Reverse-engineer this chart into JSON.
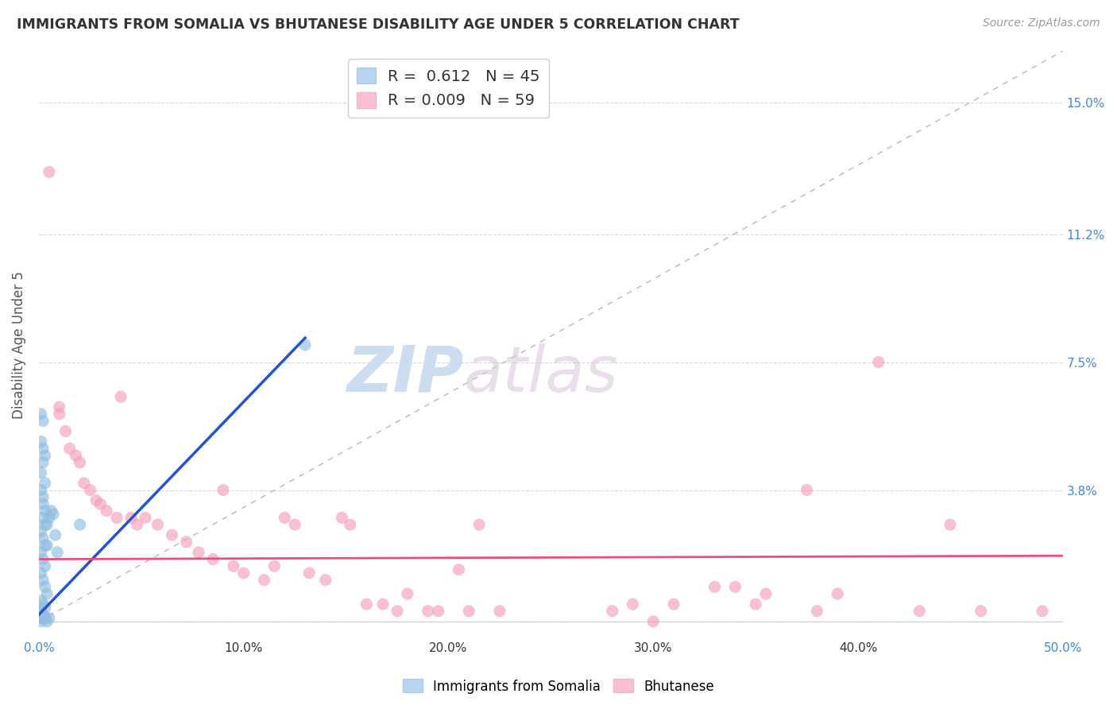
{
  "title": "IMMIGRANTS FROM SOMALIA VS BHUTANESE DISABILITY AGE UNDER 5 CORRELATION CHART",
  "source": "Source: ZipAtlas.com",
  "ylabel": "Disability Age Under 5",
  "xlim": [
    0.0,
    0.5
  ],
  "ylim": [
    -0.005,
    0.165
  ],
  "legend_somalia_r": "0.612",
  "legend_somalia_n": "45",
  "legend_bhutan_r": "0.009",
  "legend_bhutan_n": "59",
  "somalia_scatter_color": "#90bde0",
  "bhutan_scatter_color": "#f5a0bb",
  "somalia_line_color": "#2255cc",
  "bhutan_line_color": "#e8507a",
  "somalia_legend_color": "#b8d4ee",
  "bhutan_legend_color": "#f9c0d0",
  "diagonal_color": "#b8b8b8",
  "somalia_line_x0": 0.0,
  "somalia_line_y0": 0.002,
  "somalia_line_x1": 0.13,
  "somalia_line_y1": 0.082,
  "bhutan_line_x0": 0.0,
  "bhutan_line_y0": 0.018,
  "bhutan_line_x1": 0.5,
  "bhutan_line_y1": 0.019,
  "somalia_points": [
    [
      0.001,
      0.06
    ],
    [
      0.002,
      0.058
    ],
    [
      0.001,
      0.052
    ],
    [
      0.002,
      0.05
    ],
    [
      0.003,
      0.048
    ],
    [
      0.002,
      0.046
    ],
    [
      0.001,
      0.043
    ],
    [
      0.003,
      0.04
    ],
    [
      0.001,
      0.038
    ],
    [
      0.002,
      0.036
    ],
    [
      0.002,
      0.034
    ],
    [
      0.003,
      0.032
    ],
    [
      0.002,
      0.03
    ],
    [
      0.004,
      0.028
    ],
    [
      0.003,
      0.028
    ],
    [
      0.005,
      0.03
    ],
    [
      0.001,
      0.026
    ],
    [
      0.002,
      0.024
    ],
    [
      0.003,
      0.022
    ],
    [
      0.004,
      0.022
    ],
    [
      0.001,
      0.02
    ],
    [
      0.002,
      0.018
    ],
    [
      0.003,
      0.016
    ],
    [
      0.001,
      0.014
    ],
    [
      0.002,
      0.012
    ],
    [
      0.003,
      0.01
    ],
    [
      0.004,
      0.008
    ],
    [
      0.001,
      0.006
    ],
    [
      0.002,
      0.005
    ],
    [
      0.003,
      0.004
    ],
    [
      0.001,
      0.003
    ],
    [
      0.002,
      0.002
    ],
    [
      0.001,
      0.002
    ],
    [
      0.003,
      0.001
    ],
    [
      0.002,
      0.001
    ],
    [
      0.001,
      0.001
    ],
    [
      0.006,
      0.032
    ],
    [
      0.007,
      0.031
    ],
    [
      0.008,
      0.025
    ],
    [
      0.009,
      0.02
    ],
    [
      0.02,
      0.028
    ],
    [
      0.13,
      0.08
    ],
    [
      0.001,
      0.0
    ],
    [
      0.004,
      0.0
    ],
    [
      0.005,
      0.001
    ]
  ],
  "bhutan_points": [
    [
      0.005,
      0.13
    ],
    [
      0.01,
      0.062
    ],
    [
      0.01,
      0.06
    ],
    [
      0.013,
      0.055
    ],
    [
      0.015,
      0.05
    ],
    [
      0.018,
      0.048
    ],
    [
      0.02,
      0.046
    ],
    [
      0.022,
      0.04
    ],
    [
      0.025,
      0.038
    ],
    [
      0.028,
      0.035
    ],
    [
      0.03,
      0.034
    ],
    [
      0.033,
      0.032
    ],
    [
      0.038,
      0.03
    ],
    [
      0.04,
      0.065
    ],
    [
      0.045,
      0.03
    ],
    [
      0.048,
      0.028
    ],
    [
      0.052,
      0.03
    ],
    [
      0.058,
      0.028
    ],
    [
      0.065,
      0.025
    ],
    [
      0.072,
      0.023
    ],
    [
      0.078,
      0.02
    ],
    [
      0.085,
      0.018
    ],
    [
      0.09,
      0.038
    ],
    [
      0.095,
      0.016
    ],
    [
      0.1,
      0.014
    ],
    [
      0.11,
      0.012
    ],
    [
      0.115,
      0.016
    ],
    [
      0.12,
      0.03
    ],
    [
      0.125,
      0.028
    ],
    [
      0.132,
      0.014
    ],
    [
      0.14,
      0.012
    ],
    [
      0.148,
      0.03
    ],
    [
      0.152,
      0.028
    ],
    [
      0.16,
      0.005
    ],
    [
      0.168,
      0.005
    ],
    [
      0.175,
      0.003
    ],
    [
      0.18,
      0.008
    ],
    [
      0.19,
      0.003
    ],
    [
      0.195,
      0.003
    ],
    [
      0.205,
      0.015
    ],
    [
      0.21,
      0.003
    ],
    [
      0.215,
      0.028
    ],
    [
      0.225,
      0.003
    ],
    [
      0.28,
      0.003
    ],
    [
      0.29,
      0.005
    ],
    [
      0.3,
      0.0
    ],
    [
      0.31,
      0.005
    ],
    [
      0.33,
      0.01
    ],
    [
      0.34,
      0.01
    ],
    [
      0.35,
      0.005
    ],
    [
      0.355,
      0.008
    ],
    [
      0.375,
      0.038
    ],
    [
      0.38,
      0.003
    ],
    [
      0.39,
      0.008
    ],
    [
      0.41,
      0.075
    ],
    [
      0.43,
      0.003
    ],
    [
      0.445,
      0.028
    ],
    [
      0.46,
      0.003
    ],
    [
      0.49,
      0.003
    ]
  ],
  "background_color": "#ffffff",
  "grid_color": "#d8d8d8",
  "ytick_vals": [
    0.0,
    0.038,
    0.075,
    0.112,
    0.15
  ],
  "ytick_labels": [
    "",
    "3.8%",
    "7.5%",
    "11.2%",
    "15.0%"
  ],
  "xtick_vals": [
    0.0,
    0.1,
    0.2,
    0.3,
    0.4,
    0.5
  ],
  "xtick_labels": [
    "0.0%",
    "10.0%",
    "20.0%",
    "30.0%",
    "40.0%",
    "50.0%"
  ]
}
